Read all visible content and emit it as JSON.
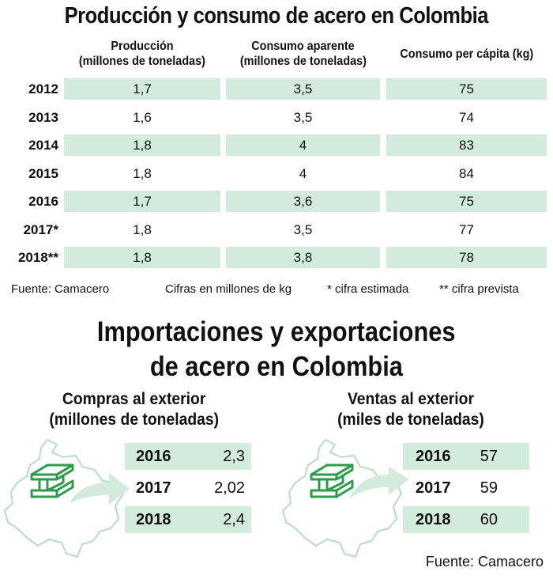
{
  "title": "Producción y consumo de acero en Colombia",
  "columns": [
    {
      "line1": "Producción",
      "line2": "(millones de toneladas)"
    },
    {
      "line1": "Consumo aparente",
      "line2": "(millones de toneladas)"
    },
    {
      "line1": "Consumo per cápita (kg)",
      "line2": ""
    }
  ],
  "rows": [
    {
      "year": "2012",
      "produccion": "1,7",
      "consumo": "3,5",
      "per_capita": "75"
    },
    {
      "year": "2013",
      "produccion": "1,6",
      "consumo": "3,5",
      "per_capita": "74"
    },
    {
      "year": "2014",
      "produccion": "1,8",
      "consumo": "4",
      "per_capita": "83"
    },
    {
      "year": "2015",
      "produccion": "1,8",
      "consumo": "4",
      "per_capita": "84"
    },
    {
      "year": "2016",
      "produccion": "1,7",
      "consumo": "3,6",
      "per_capita": "75"
    },
    {
      "year": "2017*",
      "produccion": "1,8",
      "consumo": "3,5",
      "per_capita": "77"
    },
    {
      "year": "2018**",
      "produccion": "1,8",
      "consumo": "3,8",
      "per_capita": "78"
    }
  ],
  "footnotes": {
    "source": "Fuente: Camacero",
    "units": "Cifras en millones de kg",
    "estimated": "* cifra estimada",
    "forecast": "** cifra prevista"
  },
  "title2": {
    "line1": "Importaciones y exportaciones",
    "line2": "de acero en Colombia"
  },
  "imports": {
    "heading1": "Compras al exterior",
    "heading2": "(millones de toneladas)",
    "rows": [
      {
        "year": "2016",
        "value": "2,3"
      },
      {
        "year": "2017",
        "value": "2,02"
      },
      {
        "year": "2018",
        "value": "2,4"
      }
    ]
  },
  "exports": {
    "heading1": "Ventas al exterior",
    "heading2": "(miles de toneladas)",
    "rows": [
      {
        "year": "2016",
        "value": "57"
      },
      {
        "year": "2017",
        "value": "59"
      },
      {
        "year": "2018",
        "value": "60"
      }
    ]
  },
  "source_bottom": "Fuente: Camacero",
  "icons": {
    "map": "colombia-map-icon",
    "beam": "steel-beam-icon",
    "arrow": "curved-arrow-icon"
  },
  "colors": {
    "shade": "#d3ebdc",
    "icon_green": "#2e9a4a",
    "map_stroke": "#b7dcc2",
    "arrow": "#d3ebdc"
  },
  "chart_data": [
    {
      "type": "table",
      "title": "Producción y consumo de acero en Colombia",
      "columns": [
        "Producción (millones de toneladas)",
        "Consumo aparente (millones de toneladas)",
        "Consumo per cápita (kg)"
      ],
      "categories": [
        "2012",
        "2013",
        "2014",
        "2015",
        "2016",
        "2017*",
        "2018**"
      ],
      "series": [
        {
          "name": "Producción (millones de toneladas)",
          "values": [
            1.7,
            1.6,
            1.8,
            1.8,
            1.7,
            1.8,
            1.8
          ]
        },
        {
          "name": "Consumo aparente (millones de toneladas)",
          "values": [
            3.5,
            3.5,
            4,
            4,
            3.6,
            3.5,
            3.8
          ]
        },
        {
          "name": "Consumo per cápita (kg)",
          "values": [
            75,
            74,
            83,
            84,
            75,
            77,
            78
          ]
        }
      ]
    },
    {
      "type": "table",
      "title": "Compras al exterior (millones de toneladas)",
      "categories": [
        "2016",
        "2017",
        "2018"
      ],
      "values": [
        2.3,
        2.02,
        2.4
      ]
    },
    {
      "type": "table",
      "title": "Ventas al exterior (miles de toneladas)",
      "categories": [
        "2016",
        "2017",
        "2018"
      ],
      "values": [
        57,
        59,
        60
      ]
    }
  ]
}
